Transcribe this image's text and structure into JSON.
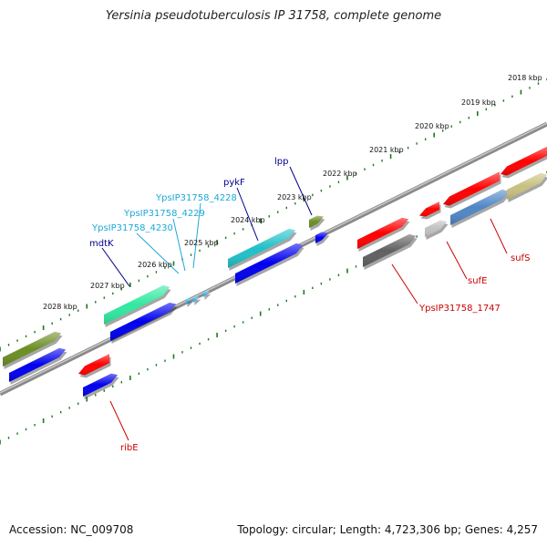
{
  "title": "Yersinia pseudotuberculosis IP 31758, complete genome",
  "footer": {
    "accession": "Accession: NC_009708",
    "summary": "Topology: circular; Length: 4,723,306 bp; Genes: 4,257"
  },
  "kbp_labels": [
    "2018 kbp",
    "2019 kbp",
    "2020 kbp",
    "2021 kbp",
    "2022 kbp",
    "2023 kbp",
    "2024 kbp",
    "2025 kbp",
    "2026 kbp",
    "2027 kbp",
    "2028 kbp"
  ],
  "colors": {
    "red": "#ff0000",
    "blue": "#0000ee",
    "olive": "#6b8e23",
    "teal": "#20c0c8",
    "green": "#30e8a0",
    "gray": "#606060",
    "light_gray": "#c0c0c0",
    "steel_blue": "#4f86c6",
    "khaki": "#c8c080",
    "sky": "#30b8f0",
    "label_blue": "#00008b",
    "label_cyan": "#1ea8d8",
    "label_red": "#cc0000"
  },
  "gene_labels": [
    {
      "text": "lpp",
      "color": "label_blue"
    },
    {
      "text": "pykF",
      "color": "label_blue"
    },
    {
      "text": "YpsIP31758_4228",
      "color": "label_cyan"
    },
    {
      "text": "YpsIP31758_4229",
      "color": "label_cyan"
    },
    {
      "text": "YpsIP31758_4230",
      "color": "label_cyan"
    },
    {
      "text": "mdtK",
      "color": "label_blue"
    },
    {
      "text": "ribE",
      "color": "label_red"
    },
    {
      "text": "YpsIP31758_1747",
      "color": "label_red"
    },
    {
      "text": "sufE",
      "color": "label_red"
    },
    {
      "text": "sufS",
      "color": "label_red"
    }
  ]
}
